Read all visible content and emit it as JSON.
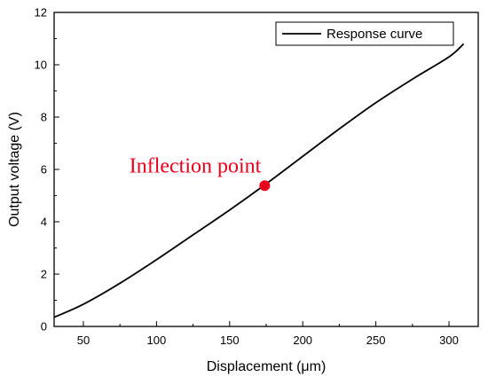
{
  "chart_data": {
    "type": "line",
    "xlabel": "Displacement (μm)",
    "ylabel": "Output voltage (V)",
    "xlim": [
      30,
      320
    ],
    "ylim": [
      0,
      12
    ],
    "x_ticks": [
      50,
      100,
      150,
      200,
      250,
      300
    ],
    "y_ticks": [
      0,
      2,
      4,
      6,
      8,
      10,
      12
    ],
    "grid": false,
    "legend_position": "top-right",
    "series": [
      {
        "name": "Response curve",
        "color": "#000000",
        "x": [
          30,
          50,
          75,
          100,
          125,
          150,
          175,
          200,
          225,
          250,
          275,
          300,
          310
        ],
        "y": [
          0.35,
          0.85,
          1.65,
          2.55,
          3.5,
          4.45,
          5.45,
          6.5,
          7.55,
          8.55,
          9.45,
          10.3,
          10.8
        ]
      }
    ],
    "annotations": [
      {
        "text": "Inflection point",
        "x": 174,
        "y": 5.38,
        "color": "#e8001c"
      }
    ]
  }
}
